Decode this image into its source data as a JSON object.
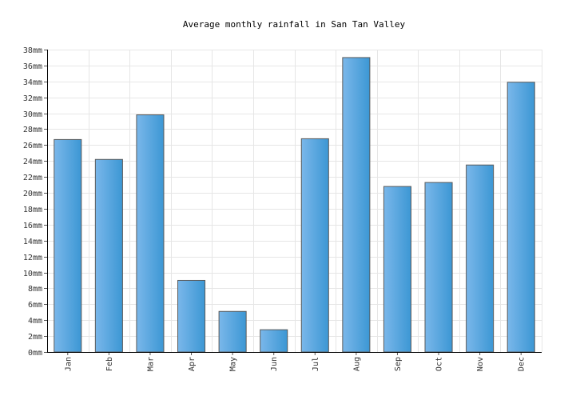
{
  "chart_data": {
    "type": "bar",
    "title": "Average monthly rainfall in San Tan Valley",
    "categories": [
      "Jan",
      "Feb",
      "Mar",
      "Apr",
      "May",
      "Jun",
      "Jul",
      "Aug",
      "Sep",
      "Oct",
      "Nov",
      "Dec"
    ],
    "values": [
      26.7,
      24.2,
      29.8,
      9.0,
      5.1,
      2.8,
      26.8,
      37.0,
      20.8,
      21.3,
      23.5,
      33.9
    ],
    "unit": "mm",
    "ylim": [
      0,
      38
    ],
    "ytick_step": 2,
    "grid": true,
    "legend": "none",
    "colors": {
      "bar_light": "#7ab7ea",
      "bar_dark": "#3c97d4",
      "bar_stroke": "#5a5a5a",
      "grid": "#e6e6e6",
      "axis": "#000000"
    }
  }
}
